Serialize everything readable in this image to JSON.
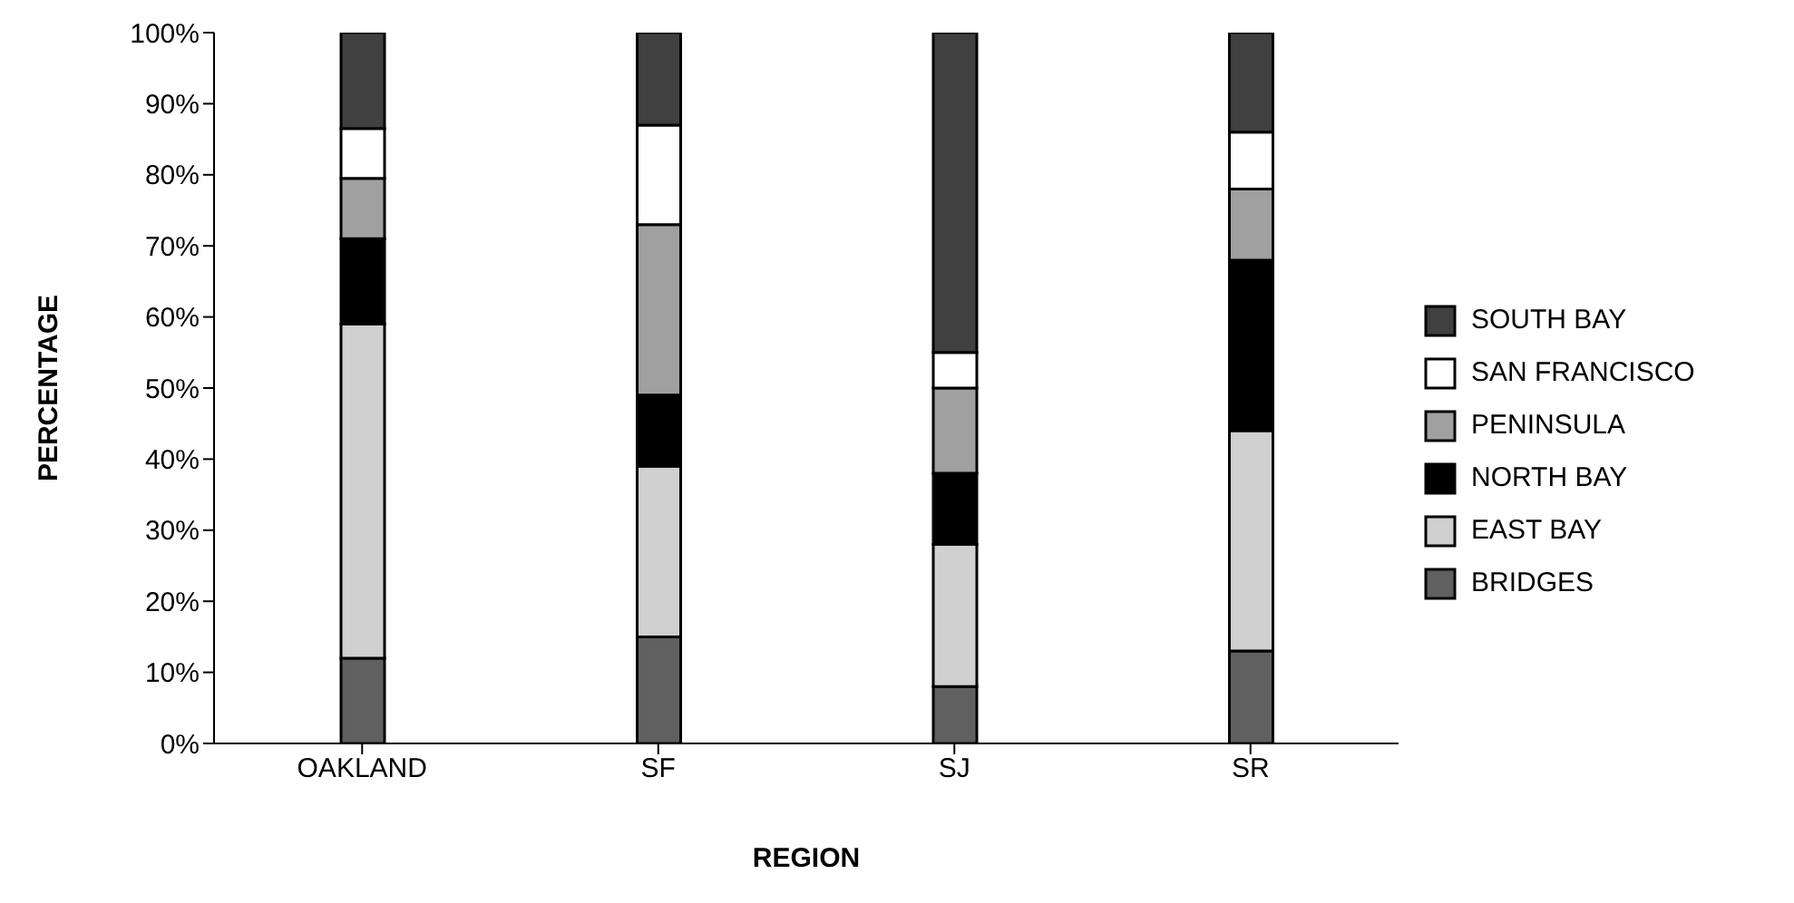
{
  "chart_data": {
    "type": "bar",
    "stacked": true,
    "xlabel": "REGION",
    "ylabel": "PERCENTAGE",
    "categories": [
      "OAKLAND",
      "SF",
      "SJ",
      "SR"
    ],
    "series": [
      {
        "name": "BRIDGES",
        "color": "#606060",
        "values": [
          12,
          15,
          8,
          13
        ]
      },
      {
        "name": "EAST BAY",
        "color": "#d0d0d0",
        "values": [
          47,
          24,
          20,
          31
        ]
      },
      {
        "name": "NORTH BAY",
        "color": "#000000",
        "values": [
          12,
          10,
          10,
          24
        ]
      },
      {
        "name": "PENINSULA",
        "color": "#a0a0a0",
        "values": [
          8.5,
          24,
          12,
          10
        ]
      },
      {
        "name": "SAN FRANCISCO",
        "color": "#ffffff",
        "values": [
          7,
          14,
          5,
          8
        ]
      },
      {
        "name": "SOUTH BAY",
        "color": "#404040",
        "values": [
          13.5,
          13,
          45,
          14
        ]
      }
    ],
    "ylim": [
      0,
      100
    ],
    "yticks": [
      {
        "value": 0,
        "label": "0%"
      },
      {
        "value": 10,
        "label": "10%"
      },
      {
        "value": 20,
        "label": "20%"
      },
      {
        "value": 30,
        "label": "30%"
      },
      {
        "value": 40,
        "label": "40%"
      },
      {
        "value": 50,
        "label": "50%"
      },
      {
        "value": 60,
        "label": "60%"
      },
      {
        "value": 70,
        "label": "70%"
      },
      {
        "value": 80,
        "label": "80%"
      },
      {
        "value": 90,
        "label": "90%"
      },
      {
        "value": 100,
        "label": "100%"
      }
    ],
    "grid": false,
    "legend": "right"
  }
}
